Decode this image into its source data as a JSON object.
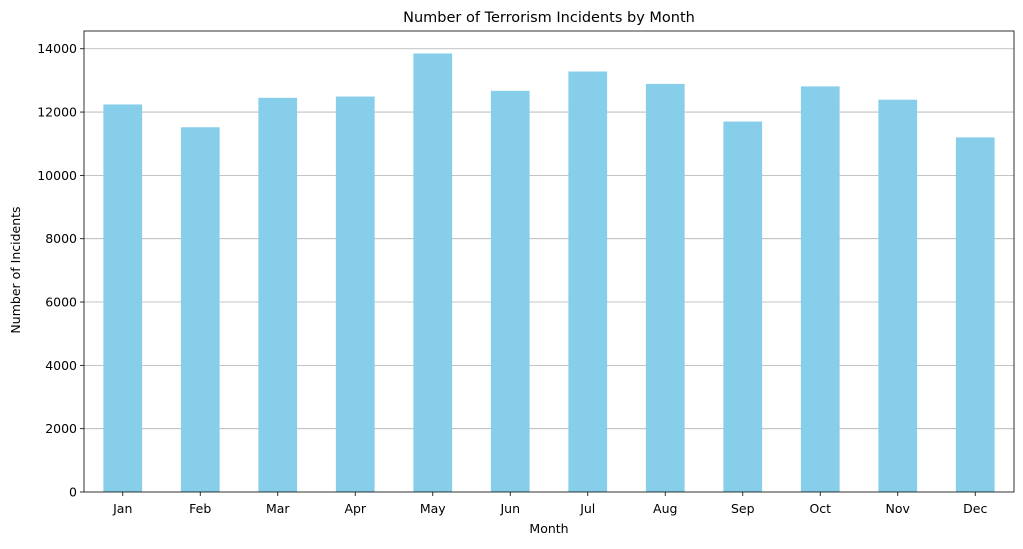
{
  "chart_data": {
    "type": "bar",
    "title": "Number of Terrorism Incidents by Month",
    "xlabel": "Month",
    "ylabel": "Number of Incidents",
    "categories": [
      "Jan",
      "Feb",
      "Mar",
      "Apr",
      "May",
      "Jun",
      "Jul",
      "Aug",
      "Sep",
      "Oct",
      "Nov",
      "Dec"
    ],
    "values": [
      12240,
      11520,
      12450,
      12490,
      13850,
      12670,
      13280,
      12890,
      11700,
      12810,
      12390,
      11200
    ],
    "ylim": [
      0,
      14560
    ],
    "yticks": [
      0,
      2000,
      4000,
      6000,
      8000,
      10000,
      12000,
      14000
    ],
    "ytick_labels": [
      "0",
      "2000",
      "4000",
      "6000",
      "8000",
      "10000",
      "12000",
      "14000"
    ],
    "grid": "y",
    "legend": "none",
    "colors": {
      "bar": "#87ceeb",
      "grid": "#b0b0b0",
      "axis": "#000000"
    }
  }
}
